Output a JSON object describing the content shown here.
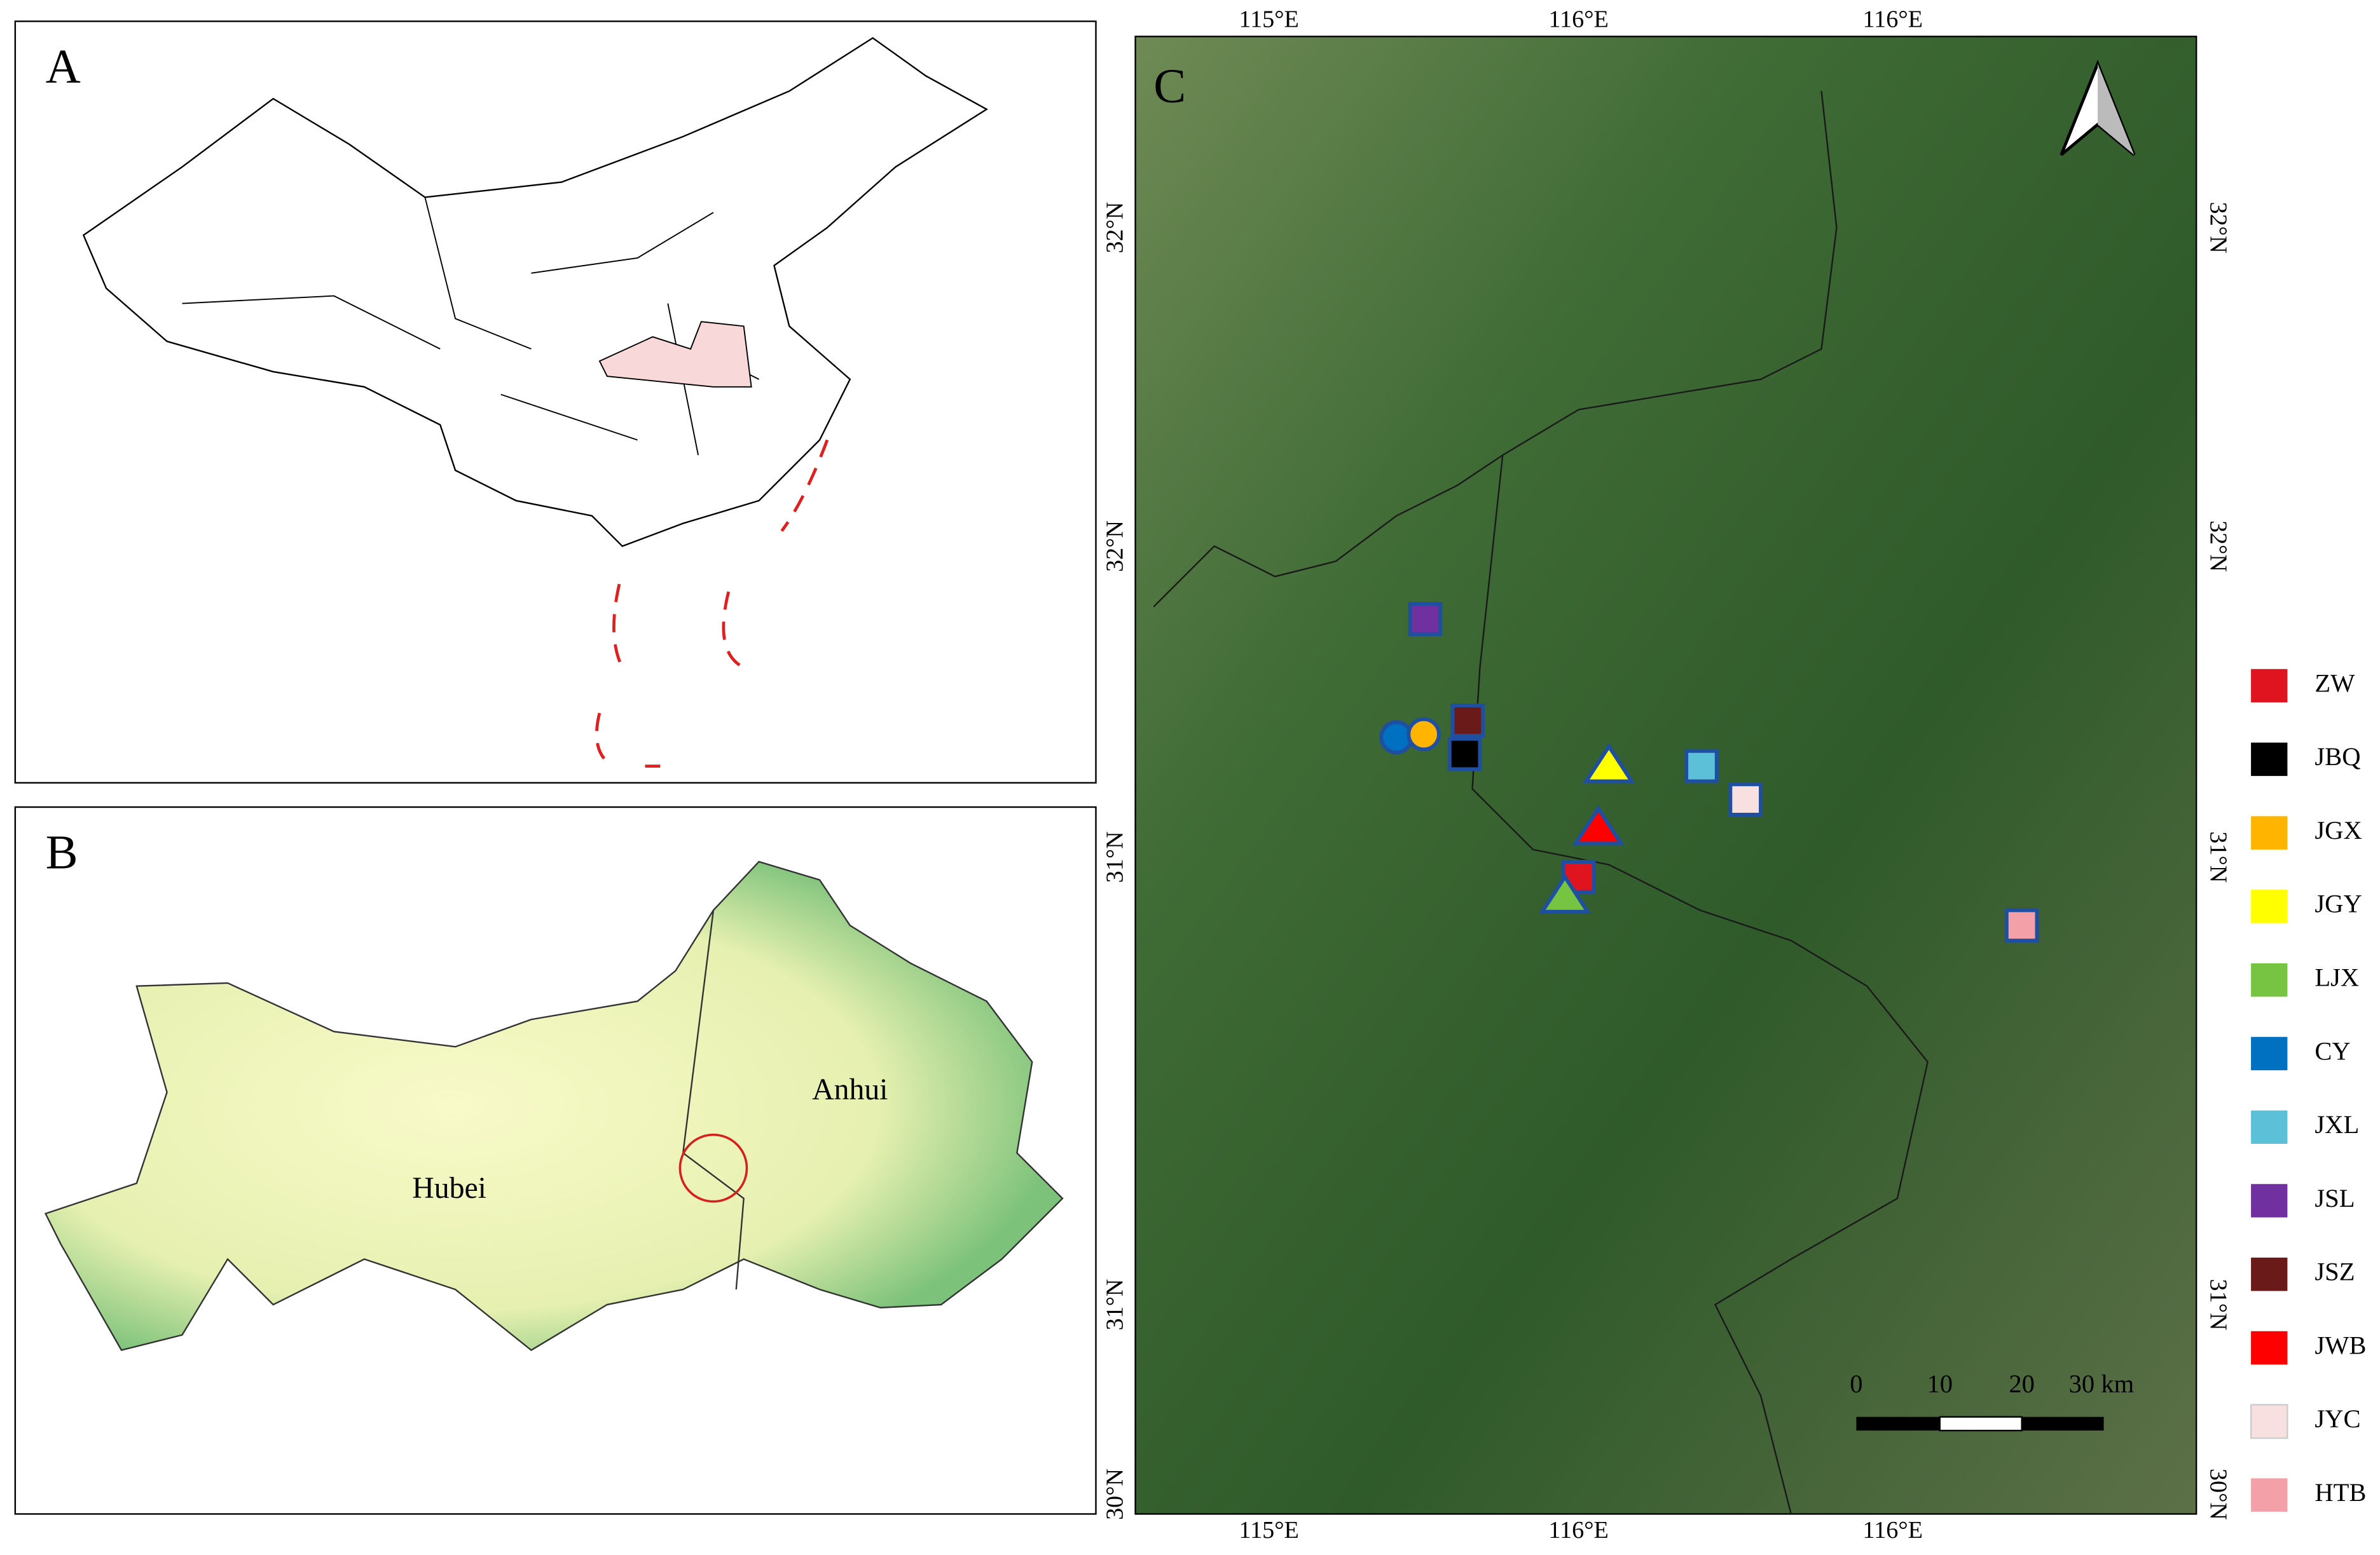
{
  "panels": {
    "a": {
      "label": "A"
    },
    "b": {
      "label": "B",
      "regions": [
        "Hubei",
        "Anhui"
      ]
    },
    "c": {
      "label": "C"
    }
  },
  "axes": {
    "top": [
      "115°E",
      "116°E",
      "116°E"
    ],
    "bottom": [
      "115°E",
      "116°E",
      "116°E"
    ],
    "left": [
      "32°N",
      "32°N",
      "31°N",
      "31°N",
      "30°N"
    ],
    "right": [
      "32°N",
      "32°N",
      "31°N",
      "31°N",
      "30°N"
    ]
  },
  "scale_bar": [
    "0",
    "10",
    "20",
    "30 km"
  ],
  "legend": [
    {
      "name": "ZW",
      "color": "#e0141e"
    },
    {
      "name": "JBQ",
      "color": "#000000"
    },
    {
      "name": "JGX",
      "color": "#ffb400"
    },
    {
      "name": "JGY",
      "color": "#ffff00"
    },
    {
      "name": "LJX",
      "color": "#76c442"
    },
    {
      "name": "CY",
      "color": "#0070c0"
    },
    {
      "name": "JXL",
      "color": "#5bc0d8"
    },
    {
      "name": "JSL",
      "color": "#7030a0"
    },
    {
      "name": "JSZ",
      "color": "#6b1a1a"
    },
    {
      "name": "JWB",
      "color": "#ff0000"
    },
    {
      "name": "JYC",
      "color": "#f8e0e0"
    },
    {
      "name": "HTB",
      "color": "#f4a0a8"
    }
  ]
}
